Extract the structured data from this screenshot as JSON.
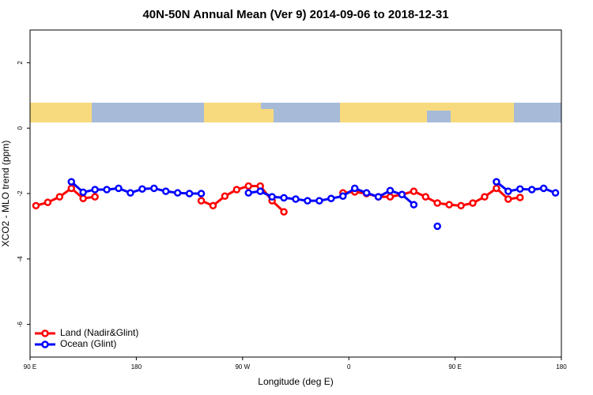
{
  "chart_data": {
    "type": "line",
    "title": "40N-50N Annual Mean (Ver 9)   2014-09-06 to 2018-12-31",
    "x_label": "Longitude (deg E)",
    "y_label": "XCO2 - MLO trend (ppm)",
    "x": [
      95,
      105,
      115,
      125,
      135,
      145,
      155,
      165,
      175,
      185,
      195,
      205,
      215,
      225,
      235,
      245,
      255,
      265,
      275,
      285,
      295,
      305,
      315,
      325,
      335,
      345,
      355,
      365,
      375,
      385,
      395,
      405,
      415,
      425,
      435,
      445,
      455,
      465,
      475,
      485,
      495,
      505,
      515,
      525,
      535
    ],
    "series": [
      {
        "name": "Land (Nadir&Glint)",
        "color": "#ff0000",
        "values": [
          -2.37,
          -2.27,
          -2.1,
          -1.84,
          -2.15,
          -2.1,
          null,
          null,
          null,
          null,
          null,
          null,
          null,
          null,
          -2.22,
          -2.37,
          -2.08,
          -1.88,
          -1.77,
          -1.77,
          -2.22,
          -2.56,
          null,
          null,
          null,
          null,
          -1.98,
          -1.95,
          -2.0,
          -2.1,
          -2.1,
          -2.03,
          -1.93,
          -2.1,
          -2.29,
          -2.34,
          -2.37,
          -2.29,
          -2.1,
          -1.84,
          -2.17,
          -2.12,
          null,
          null,
          null
        ]
      },
      {
        "name": "Ocean (Glint)",
        "color": "#0000ff",
        "values": [
          null,
          null,
          null,
          -1.64,
          -1.96,
          -1.88,
          -1.88,
          -1.84,
          -1.98,
          -1.86,
          -1.84,
          -1.93,
          -1.98,
          -2.0,
          -2.0,
          null,
          null,
          null,
          -1.98,
          -1.93,
          -2.1,
          -2.13,
          -2.17,
          -2.22,
          -2.22,
          -2.15,
          -2.08,
          -1.84,
          -1.98,
          -2.1,
          -1.91,
          -2.03,
          -2.34,
          null,
          -3.0,
          null,
          null,
          null,
          null,
          -1.64,
          -1.93,
          -1.86,
          -1.88,
          -1.84,
          -1.98
        ]
      }
    ],
    "xlim": [
      90,
      540
    ],
    "xticks": [
      {
        "value": 90,
        "label": "90 E"
      },
      {
        "value": 180,
        "label": "180"
      },
      {
        "value": 270,
        "label": "90 W"
      },
      {
        "value": 360,
        "label": "0"
      },
      {
        "value": 450,
        "label": "90 E"
      },
      {
        "value": 540,
        "label": "180"
      }
    ],
    "ylim": [
      -7,
      3
    ],
    "yticks": [
      -6,
      -4,
      -2,
      0,
      2
    ],
    "legend": "bottom-left"
  }
}
